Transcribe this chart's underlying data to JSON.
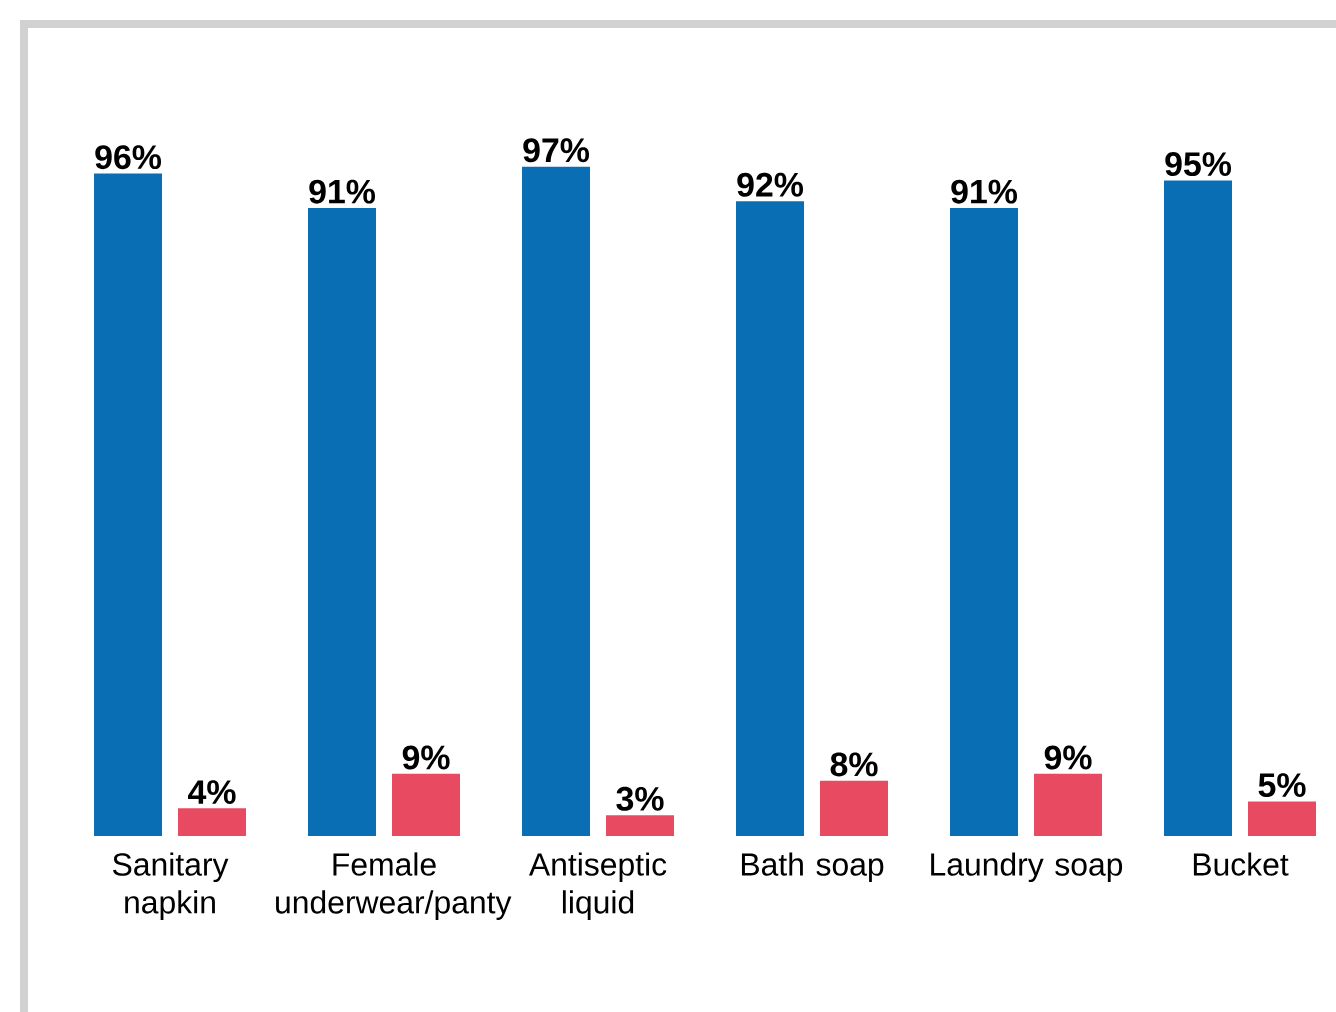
{
  "chart_data": {
    "type": "bar",
    "categories": [
      "Sanitary napkin",
      "Female underwear/panty",
      "Antiseptic liquid",
      "Bath soap",
      "Laundry soap",
      "Bucket"
    ],
    "series": [
      {
        "color": "#0a6eb4",
        "values": [
          96,
          91,
          97,
          92,
          91,
          95
        ],
        "value_labels": [
          "96%",
          "91%",
          "97%",
          "92%",
          "91%",
          "95%"
        ]
      },
      {
        "color": "#e84a62",
        "values": [
          4,
          9,
          3,
          8,
          9,
          5
        ],
        "value_labels": [
          "4%",
          "9%",
          "3%",
          "8%",
          "9%",
          "5%"
        ]
      }
    ]
  }
}
